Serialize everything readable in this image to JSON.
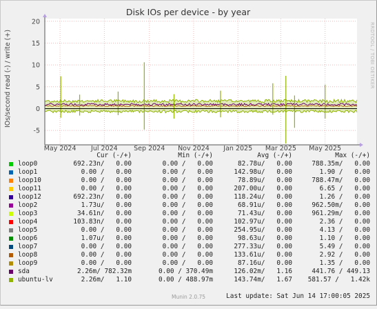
{
  "chart_data": {
    "type": "line",
    "title": "Disk IOs per device - by year",
    "ylabel": "IOs/second read (-) / write (+)",
    "side_label": "RRDTOOL / TOBI OETIKER",
    "ylim": [
      -8.3,
      20.6
    ],
    "y_ticks": [
      20,
      15,
      10,
      5,
      0,
      -5
    ],
    "x_ticks": [
      {
        "date": "2024-05-01",
        "label": "May 2024"
      },
      {
        "date": "2024-07-01",
        "label": "Jul 2024"
      },
      {
        "date": "2024-09-01",
        "label": "Sep 2024"
      },
      {
        "date": "2024-11-01",
        "label": "Nov 2024"
      },
      {
        "date": "2025-01-01",
        "label": "Jan 2025"
      },
      {
        "date": "2025-03-01",
        "label": "Mar 2025"
      },
      {
        "date": "2025-05-01",
        "label": "May 2025"
      }
    ],
    "x_range": [
      "2024-04-10",
      "2025-06-14"
    ],
    "series_write_avg": {
      "ubuntu-lv": 1.67,
      "sda": 1.16
    },
    "spikes": [
      {
        "date": "2024-05-02",
        "write": 7.4,
        "read": -2.1
      },
      {
        "date": "2024-05-28",
        "write": 3.2,
        "read": -1.6
      },
      {
        "date": "2024-07-20",
        "write": 3.9,
        "read": -1.5
      },
      {
        "date": "2024-08-25",
        "write": 10.6,
        "read": -4.8
      },
      {
        "date": "2024-10-05",
        "write": 3.3,
        "read": -2.3
      },
      {
        "date": "2024-12-08",
        "write": 4.1,
        "read": -2.0
      },
      {
        "date": "2025-02-18",
        "write": 5.8,
        "read": -1.4
      },
      {
        "date": "2025-03-08",
        "write": 7.5,
        "read": -8.0
      },
      {
        "date": "2025-03-20",
        "write": 3.0,
        "read": -4.4
      },
      {
        "date": "2025-05-01",
        "write": 5.5,
        "read": -2.3
      }
    ]
  },
  "legend": {
    "headers": {
      "cur": "Cur (-/+)",
      "min": "Min (-/+)",
      "avg": "Avg (-/+)",
      "max": "Max (-/+)"
    },
    "rows": [
      {
        "name": "loop0",
        "color": "#00cc00",
        "cur": "692.23n/   0.00",
        "min": "0.00 /   0.00",
        "avg": "82.78u/   0.00",
        "max": "788.35m/   0.00"
      },
      {
        "name": "loop1",
        "color": "#0066b3",
        "cur": "0.00 /   0.00",
        "min": "0.00 /   0.00",
        "avg": "142.98u/   0.00",
        "max": "1.90 /   0.00"
      },
      {
        "name": "loop10",
        "color": "#ff8000",
        "cur": "0.00 /   0.00",
        "min": "0.00 /   0.00",
        "avg": "78.89u/   0.00",
        "max": "788.47m/   0.00"
      },
      {
        "name": "loop11",
        "color": "#ffcc00",
        "cur": "0.00 /   0.00",
        "min": "0.00 /   0.00",
        "avg": "207.00u/   0.00",
        "max": "6.65 /   0.00"
      },
      {
        "name": "loop12",
        "color": "#330099",
        "cur": "692.23n/   0.00",
        "min": "0.00 /   0.00",
        "avg": "118.24u/   0.00",
        "max": "1.26 /   0.00"
      },
      {
        "name": "loop2",
        "color": "#990099",
        "cur": "1.73u/   0.00",
        "min": "0.00 /   0.00",
        "avg": "68.91u/   0.00",
        "max": "962.50m/   0.00"
      },
      {
        "name": "loop3",
        "color": "#ccff00",
        "cur": "34.61n/   0.00",
        "min": "0.00 /   0.00",
        "avg": "71.43u/   0.00",
        "max": "961.29m/   0.00"
      },
      {
        "name": "loop4",
        "color": "#ff0000",
        "cur": "103.83n/   0.00",
        "min": "0.00 /   0.00",
        "avg": "102.97u/   0.00",
        "max": "2.36 /   0.00"
      },
      {
        "name": "loop5",
        "color": "#808080",
        "cur": "0.00 /   0.00",
        "min": "0.00 /   0.00",
        "avg": "254.95u/   0.00",
        "max": "4.13 /   0.00"
      },
      {
        "name": "loop6",
        "color": "#008f00",
        "cur": "1.07u/   0.00",
        "min": "0.00 /   0.00",
        "avg": "98.63u/   0.00",
        "max": "1.10 /   0.00"
      },
      {
        "name": "loop7",
        "color": "#00487d",
        "cur": "0.00 /   0.00",
        "min": "0.00 /   0.00",
        "avg": "277.33u/   0.00",
        "max": "5.49 /   0.00"
      },
      {
        "name": "loop8",
        "color": "#b35a00",
        "cur": "0.00 /   0.00",
        "min": "0.00 /   0.00",
        "avg": "133.61u/   0.00",
        "max": "2.92 /   0.00"
      },
      {
        "name": "loop9",
        "color": "#b38f00",
        "cur": "0.00 /   0.00",
        "min": "0.00 /   0.00",
        "avg": "87.16u/   0.00",
        "max": "1.35 /   0.00"
      },
      {
        "name": "sda",
        "color": "#6b006b",
        "cur": "2.26m/ 782.32m",
        "min": "0.00 / 370.49m",
        "avg": "126.02m/   1.16",
        "max": "441.76 / 449.13"
      },
      {
        "name": "ubuntu-lv",
        "color": "#8fb300",
        "cur": "2.26m/   1.10",
        "min": "0.00 / 488.97m",
        "avg": "143.74m/   1.67",
        "max": "581.57 /   1.42k"
      }
    ],
    "last_update": "Last update: Sat Jun 14 17:00:05 2025"
  },
  "footer": "Munin 2.0.75"
}
